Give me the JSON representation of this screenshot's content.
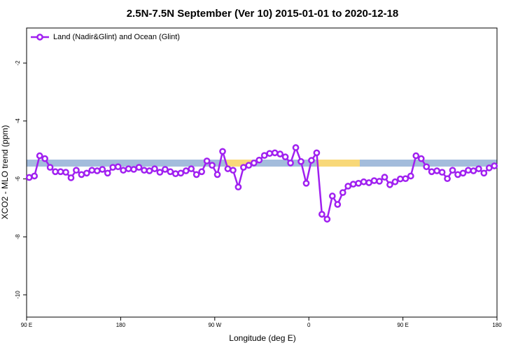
{
  "chart_data": {
    "type": "line",
    "title": "2.5N-7.5N September (Ver 10)   2015-01-01 to 2020-12-18",
    "x_label": "Longitude (deg E)",
    "y_label": "XCO2 - MLO trend (ppm)",
    "x": [
      92.5,
      97.5,
      102.5,
      107.5,
      112.5,
      117.5,
      122.5,
      127.5,
      132.5,
      137.5,
      142.5,
      147.5,
      152.5,
      157.5,
      162.5,
      167.5,
      172.5,
      177.5,
      182.5,
      187.5,
      192.5,
      197.5,
      202.5,
      207.5,
      212.5,
      217.5,
      222.5,
      227.5,
      232.5,
      237.5,
      242.5,
      247.5,
      252.5,
      257.5,
      262.5,
      267.5,
      272.5,
      277.5,
      282.5,
      287.5,
      292.5,
      297.5,
      302.5,
      307.5,
      312.5,
      317.5,
      322.5,
      327.5,
      332.5,
      337.5,
      342.5,
      347.5,
      352.5,
      357.5,
      362.5,
      367.5,
      372.5,
      377.5,
      382.5,
      387.5,
      392.5,
      397.5,
      402.5,
      407.5,
      412.5,
      417.5,
      422.5,
      427.5,
      432.5,
      437.5,
      442.5,
      447.5,
      452.5,
      457.5,
      462.5,
      467.5,
      472.5,
      477.5,
      482.5,
      487.5,
      492.5,
      497.5,
      502.5,
      507.5,
      512.5,
      517.5,
      522.5,
      527.5,
      532.5,
      537.5
    ],
    "series": [
      {
        "name": "Land (Nadir&Glint) and Ocean (Glint)",
        "color": "#a020f0",
        "values": [
          -5.95,
          -5.9,
          -5.2,
          -5.3,
          -5.6,
          -5.75,
          -5.75,
          -5.77,
          -5.96,
          -5.7,
          -5.85,
          -5.8,
          -5.7,
          -5.72,
          -5.67,
          -5.8,
          -5.6,
          -5.58,
          -5.7,
          -5.65,
          -5.67,
          -5.6,
          -5.7,
          -5.72,
          -5.65,
          -5.77,
          -5.67,
          -5.75,
          -5.82,
          -5.8,
          -5.72,
          -5.65,
          -5.85,
          -5.75,
          -5.38,
          -5.53,
          -5.85,
          -5.05,
          -5.65,
          -5.7,
          -6.28,
          -5.6,
          -5.53,
          -5.45,
          -5.35,
          -5.19,
          -5.12,
          -5.1,
          -5.14,
          -5.24,
          -5.45,
          -4.92,
          -5.4,
          -6.15,
          -5.36,
          -5.1,
          -7.22,
          -7.39,
          -6.59,
          -6.88,
          -6.47,
          -6.25,
          -6.18,
          -6.15,
          -6.1,
          -6.13,
          -6.06,
          -6.08,
          -5.94,
          -6.2,
          -6.1,
          -6.0,
          -5.99,
          -5.9,
          -5.2,
          -5.3,
          -5.58,
          -5.75,
          -5.72,
          -5.77,
          -5.99,
          -5.7,
          -5.85,
          -5.8,
          -5.7,
          -5.72,
          -5.65,
          -5.8,
          -5.62,
          -5.55
        ]
      }
    ],
    "xlim": [
      90,
      540
    ],
    "ylim": [
      -10.77,
      -0.79
    ],
    "xticks": [
      {
        "value": 90,
        "label": "90 E"
      },
      180,
      {
        "value": 270,
        "label": "90 W"
      },
      0.0,
      {
        "value": 450,
        "label": "90 E"
      },
      {
        "value": 540,
        "label": "180"
      }
    ],
    "yticks": [
      -10,
      -8,
      -6,
      -4,
      -2
    ],
    "legend": "top-left"
  }
}
